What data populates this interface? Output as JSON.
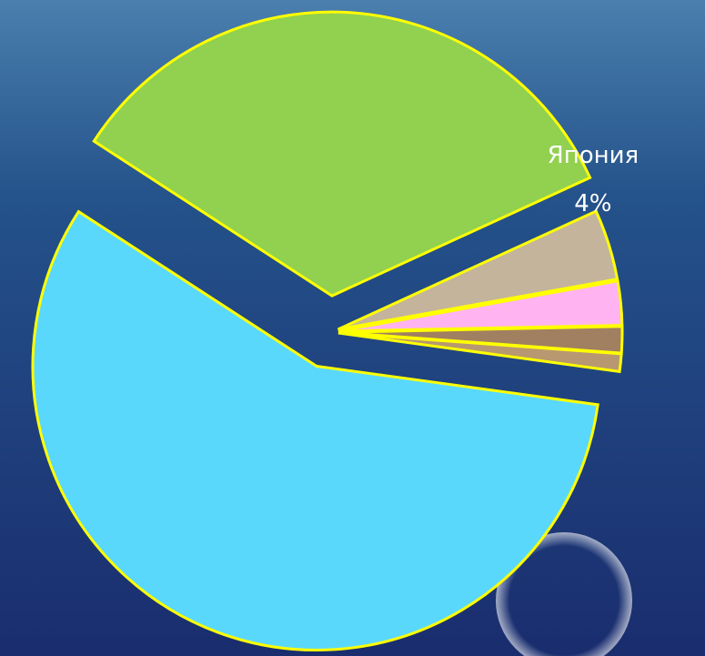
{
  "chart_data": {
    "type": "pie",
    "categories": [
      null,
      "Япония",
      null,
      null,
      null,
      null
    ],
    "values": [
      34,
      4,
      2.5,
      1.5,
      1,
      57
    ],
    "value_labels": [
      null,
      "4%",
      null,
      null,
      null,
      null
    ],
    "colors": [
      "#92d050",
      "#c4b49c",
      "#ffb3f0",
      "#a08060",
      "#b89870",
      "#5ad8fc"
    ],
    "edge_color": "#ffff00"
  }
}
